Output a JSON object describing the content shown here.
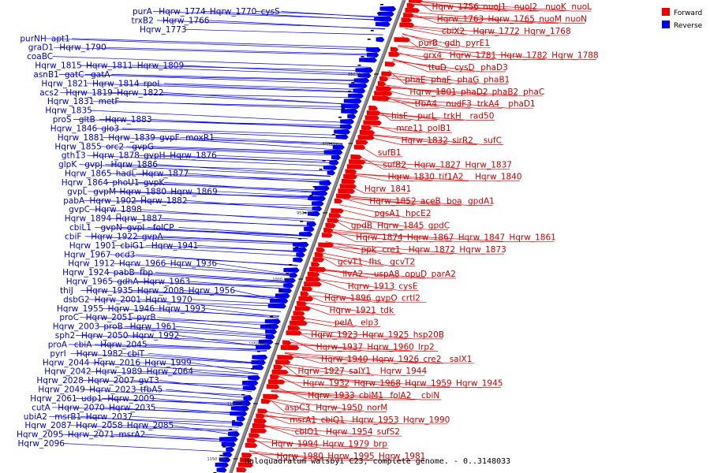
{
  "title": "Haloquadratum walsbyi C23, complete genome. - 0..3148033",
  "legend": [
    {
      "label": "Forward",
      "color": "#ee0000"
    },
    {
      "label": "Reverse",
      "color": "#0000ee"
    }
  ],
  "colors": {
    "forward": "#ee0000",
    "reverse": "#0000ee",
    "backbone": "#888888"
  },
  "scale_labels": [
    "850 kbp",
    "900 kbp",
    "950 kbp",
    "1000 kbp",
    "1050 kbp",
    "1100 kbp",
    "1150 kbp"
  ],
  "reverse_genes": [
    "purA",
    "Hqrw_1774",
    "Hqrw_1770",
    "cysS",
    "trxB2",
    "Hqrw_1766",
    "Hqrw_1773",
    "purNH",
    "apt1",
    "graD1",
    "Hqrw_1790",
    "coaBC",
    "Hqrw_1815",
    "Hqrw_1811",
    "Hqrw_1809",
    "asnB1",
    "gatC",
    "gatA",
    "Hqrw_1821",
    "Hqrw_1814",
    "rpoL",
    "acs2",
    "Hqrw_1819",
    "Hqrw_1822",
    "Hqrw_1831",
    "metF",
    "Hqrw_1835",
    "proS",
    "gltB",
    "Hqrw_1883",
    "Hqrw_1846",
    "glo3",
    "Hqrw_1881",
    "Hqrw_1839",
    "gvpF",
    "moxR1",
    "Hqrw_1855",
    "orc2",
    "gvpG",
    "gth13",
    "Hqrw_1878",
    "gvpH",
    "Hqrw_1876",
    "glpK",
    "gvpJ",
    "Hqrw_1886",
    "Hqrw_1865",
    "hadL",
    "Hqrw_1877",
    "Hqrw_1864",
    "phoU1",
    "gvpK",
    "gvpL",
    "gvpM",
    "Hqrw_1880",
    "Hqrw_1869",
    "pabA",
    "Hqrw_1902",
    "Hqrw_1882",
    "gvpC",
    "Hqrw_1898",
    "Hqrw_1894",
    "Hqrw_1887",
    "cbiL1",
    "gvpN",
    "gvpI",
    "folCP",
    "cbiF",
    "Hqrw_1922",
    "gvpA",
    "Hqrw_1901",
    "cbiG1",
    "Hqrw_1941",
    "Hqrw_1967",
    "ocd3",
    "Hqrw_1912",
    "Hqrw_1966",
    "Hqrw_1936",
    "Hqrw_1924",
    "pabB",
    "fbp",
    "Hqrw_1965",
    "gdhA",
    "Hqrw_1963",
    "thiJ",
    "Hqrw_1935",
    "Hqrw_2008",
    "Hqrw_1956",
    "dsbG2",
    "Hqrw_2001",
    "Hqrw_1970",
    "Hqrw_1955",
    "Hqrw_1946",
    "Hqrw_1993",
    "proC",
    "Hqrw_2051",
    "pyrB",
    "Hqrw_2003",
    "proB",
    "Hqrw_1961",
    "sph2",
    "Hqrw_2050",
    "Hqrw_1992",
    "proA",
    "cbiA",
    "Hqrw_2045",
    "pyrI",
    "Hqrw_1982",
    "cbiT",
    "Hqrw_2044",
    "Hqrw_2016",
    "Hqrw_1999",
    "Hqrw_2042",
    "Hqrw_1989",
    "Hqrw_2064",
    "Hqrw_2028",
    "Hqrw_2007",
    "gvT3",
    "Hqrw_2049",
    "Hqrw_2023",
    "tfbA5",
    "Hqrw_2061",
    "udp1",
    "Hqrw_2009",
    "cutA",
    "Hqrw_2070",
    "Hqrw_2035",
    "ubiA2",
    "msrB1",
    "Hqrw_2037",
    "Hqrw_2087",
    "Hqrw_2058",
    "Hqrw_2085",
    "Hqrw_2095",
    "Hqrw_2071",
    "msrA2",
    "Hqrw_2096"
  ],
  "forward_genes": [
    "Hqrw_1756",
    "nuoJ1",
    "nuoJ2",
    "nuoK",
    "nuoL",
    "Hqrw_1763",
    "Hqrw_1765",
    "nuoM",
    "nuoN",
    "cbiX2",
    "Hqrw_1772",
    "Hqrw_1768",
    "purB",
    "gdh",
    "pyrE1",
    "grx4",
    "Hqrw_1781",
    "Hqrw_1782",
    "Hqrw_1788",
    "ttuD",
    "cysD",
    "phaD3",
    "phaE",
    "phaF",
    "phaG",
    "phaB1",
    "Hqrw_1801",
    "phaD2",
    "phaB2",
    "phaC",
    "tfbA4",
    "nudF3",
    "trkA4",
    "phaD1",
    "hisF",
    "purL",
    "trkH",
    "rad50",
    "mre11",
    "polB1",
    "Hqrw_1832",
    "sirR2",
    "sufC",
    "sufB1",
    "sufB2",
    "Hqrw_1827",
    "Hqrw_1837",
    "Hqrw_1830",
    "tif1A2",
    "Hqrw_1840",
    "Hqrw_1841",
    "Hqrw_1852",
    "aceB",
    "boa",
    "gpdA1",
    "pgsA1",
    "hpcE2",
    "gpdB",
    "Hqrw_1845",
    "gpdC",
    "Hqrw_1874",
    "Hqrw_1867",
    "Hqrw_1847",
    "Hqrw_1861",
    "ppk",
    "cre1",
    "Hqrw_1872",
    "Hqrw_1873",
    "gcvT1",
    "fhs",
    "gcvT2",
    "ilvA2",
    "uspA8",
    "opuD",
    "parA2",
    "Hqrw_1913",
    "cysE",
    "Hqrw_1896",
    "gvpO",
    "crtI2",
    "Hqrw_1921",
    "tdk",
    "pelA",
    "elp3",
    "Hqrw_1923",
    "Hqrw_1925",
    "hsp20B",
    "Hqrw_1937",
    "Hqrw_1960",
    "lrp2",
    "Hqrw_1940",
    "Hqrw_1926",
    "cre2",
    "salX1",
    "Hqrw_1927",
    "salY1",
    "Hqrw_1944",
    "Hqrw_1932",
    "Hqrw_1968",
    "Hqrw_1959",
    "Hqrw_1945",
    "Hqrw_1933",
    "cbiM1",
    "folA2",
    "cbiN",
    "aspC3",
    "Hqrw_1950",
    "norM",
    "msrA1",
    "cbiQ1",
    "Hqrw_1953",
    "Hqrw_1990",
    "cbiO1",
    "Hqrw_1954",
    "sufS2",
    "Hqrw_1994",
    "Hqrw_1979",
    "brp",
    "Hqrw_1980",
    "Hqrw_1995",
    "Hqrw_1981"
  ]
}
